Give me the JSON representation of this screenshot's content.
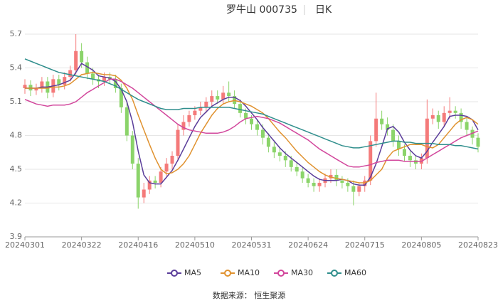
{
  "chart_data": {
    "type": "candlestick",
    "title": "罗牛山 000735",
    "period": "日K",
    "source": "数据来源： 恒生聚源",
    "categories": [
      "20240301",
      null,
      null,
      null,
      null,
      null,
      null,
      null,
      null,
      null,
      "20240322",
      null,
      null,
      null,
      null,
      null,
      null,
      null,
      null,
      null,
      "20240416",
      null,
      null,
      null,
      null,
      null,
      null,
      null,
      null,
      null,
      "20240510",
      null,
      null,
      null,
      null,
      null,
      null,
      null,
      null,
      null,
      "20240531",
      null,
      null,
      null,
      null,
      null,
      null,
      null,
      null,
      null,
      "20240624",
      null,
      null,
      null,
      null,
      null,
      null,
      null,
      null,
      null,
      "20240715",
      null,
      null,
      null,
      null,
      null,
      null,
      null,
      null,
      null,
      "20240805",
      null,
      null,
      null,
      null,
      null,
      null,
      null,
      null,
      null,
      "20240823"
    ],
    "open": [
      5.22,
      5.25,
      5.2,
      5.22,
      5.28,
      5.18,
      5.3,
      5.25,
      5.32,
      5.38,
      5.55,
      5.45,
      5.35,
      5.3,
      5.28,
      5.32,
      5.3,
      5.22,
      5.05,
      4.8,
      4.55,
      4.25,
      4.32,
      4.4,
      4.38,
      4.48,
      4.55,
      4.62,
      4.85,
      4.92,
      4.98,
      5.02,
      5.05,
      5.1,
      5.15,
      5.12,
      5.18,
      5.15,
      5.08,
      5.0,
      4.95,
      4.9,
      4.85,
      4.78,
      4.7,
      4.65,
      4.62,
      4.58,
      4.52,
      4.48,
      4.42,
      4.38,
      4.35,
      4.38,
      4.42,
      4.45,
      4.4,
      4.38,
      4.35,
      4.3,
      4.35,
      4.4,
      4.75,
      4.95,
      4.9,
      4.85,
      4.75,
      4.68,
      4.62,
      4.58,
      4.55,
      4.6,
      4.95,
      4.98,
      4.92,
      5.0,
      5.02,
      5.0,
      4.92,
      4.85,
      4.78
    ],
    "high": [
      5.3,
      5.29,
      5.26,
      5.32,
      5.32,
      5.34,
      5.34,
      5.36,
      5.42,
      5.7,
      5.62,
      5.5,
      5.4,
      5.34,
      5.36,
      5.36,
      5.34,
      5.26,
      5.1,
      4.84,
      4.6,
      4.38,
      4.44,
      4.44,
      4.52,
      4.6,
      4.66,
      4.9,
      4.98,
      5.02,
      5.06,
      5.1,
      5.14,
      5.2,
      5.2,
      5.24,
      5.28,
      5.2,
      5.12,
      5.04,
      4.98,
      4.94,
      4.9,
      4.82,
      4.74,
      4.7,
      4.66,
      4.62,
      4.56,
      4.52,
      4.46,
      4.42,
      4.42,
      4.46,
      4.5,
      4.5,
      4.44,
      4.42,
      4.4,
      4.38,
      4.44,
      4.8,
      5.18,
      5.02,
      4.96,
      4.9,
      4.8,
      4.72,
      4.66,
      4.62,
      4.64,
      5.12,
      5.04,
      5.02,
      5.06,
      5.14,
      5.06,
      5.04,
      4.96,
      4.88,
      4.82
    ],
    "low": [
      5.17,
      5.15,
      5.16,
      5.18,
      5.13,
      5.14,
      5.2,
      5.21,
      5.28,
      5.34,
      5.4,
      5.3,
      5.25,
      5.22,
      5.24,
      5.26,
      5.18,
      5.0,
      4.75,
      4.5,
      4.15,
      4.2,
      4.28,
      4.33,
      4.34,
      4.44,
      4.5,
      4.58,
      4.8,
      4.88,
      4.94,
      4.98,
      5.0,
      5.05,
      5.08,
      5.08,
      5.1,
      5.04,
      4.96,
      4.9,
      4.85,
      4.8,
      4.72,
      4.65,
      4.6,
      4.57,
      4.52,
      4.48,
      4.44,
      4.38,
      4.34,
      4.3,
      4.3,
      4.34,
      4.38,
      4.35,
      4.33,
      4.3,
      4.18,
      4.26,
      4.3,
      4.36,
      4.7,
      4.85,
      4.8,
      4.7,
      4.62,
      4.57,
      4.52,
      4.5,
      4.5,
      4.55,
      4.9,
      4.86,
      4.88,
      4.95,
      4.95,
      4.86,
      4.8,
      4.72,
      4.65
    ],
    "close": [
      5.25,
      5.2,
      5.22,
      5.28,
      5.18,
      5.3,
      5.25,
      5.32,
      5.38,
      5.55,
      5.45,
      5.35,
      5.3,
      5.28,
      5.32,
      5.3,
      5.22,
      5.05,
      4.8,
      4.55,
      4.25,
      4.32,
      4.4,
      4.38,
      4.48,
      4.55,
      4.62,
      4.85,
      4.92,
      4.98,
      5.02,
      5.05,
      5.1,
      5.15,
      5.12,
      5.18,
      5.15,
      5.08,
      5.0,
      4.95,
      4.9,
      4.85,
      4.78,
      4.7,
      4.65,
      4.62,
      4.58,
      4.52,
      4.48,
      4.42,
      4.38,
      4.35,
      4.38,
      4.42,
      4.45,
      4.4,
      4.38,
      4.35,
      4.3,
      4.35,
      4.4,
      4.75,
      4.95,
      4.9,
      4.85,
      4.75,
      4.68,
      4.62,
      4.58,
      4.55,
      4.6,
      4.95,
      4.98,
      4.92,
      5.0,
      5.02,
      5.0,
      4.92,
      4.85,
      4.78,
      4.7
    ],
    "up_color": "#f47a7a",
    "down_color": "#8bd46a",
    "series": [
      {
        "name": "MA5",
        "color": "#5a3d9a",
        "values": [
          5.22,
          5.22,
          5.22,
          5.23,
          5.23,
          5.24,
          5.25,
          5.27,
          5.29,
          5.36,
          5.44,
          5.41,
          5.38,
          5.33,
          5.32,
          5.31,
          5.28,
          5.21,
          5.1,
          4.92,
          4.66,
          4.45,
          4.38,
          4.37,
          4.37,
          4.43,
          4.49,
          4.58,
          4.68,
          4.78,
          4.88,
          4.96,
          5.01,
          5.06,
          5.09,
          5.12,
          5.14,
          5.14,
          5.11,
          5.06,
          5.0,
          4.94,
          4.87,
          4.81,
          4.75,
          4.69,
          4.64,
          4.6,
          4.56,
          4.52,
          4.48,
          4.44,
          4.41,
          4.4,
          4.4,
          4.4,
          4.41,
          4.4,
          4.37,
          4.36,
          4.36,
          4.43,
          4.55,
          4.7,
          4.86,
          4.88,
          4.83,
          4.74,
          4.67,
          4.62,
          4.6,
          4.66,
          4.74,
          4.81,
          4.88,
          4.97,
          4.98,
          4.98,
          4.97,
          4.94,
          4.85
        ]
      },
      {
        "name": "MA10",
        "color": "#e0922f",
        "values": [
          5.22,
          5.22,
          5.22,
          5.22,
          5.22,
          5.23,
          5.23,
          5.24,
          5.26,
          5.3,
          5.34,
          5.35,
          5.36,
          5.35,
          5.34,
          5.34,
          5.33,
          5.29,
          5.22,
          5.12,
          4.98,
          4.85,
          4.72,
          4.6,
          4.5,
          4.46,
          4.47,
          4.5,
          4.55,
          4.62,
          4.72,
          4.82,
          4.9,
          4.98,
          5.04,
          5.08,
          5.1,
          5.11,
          5.1,
          5.08,
          5.06,
          5.03,
          5.0,
          4.95,
          4.89,
          4.83,
          4.78,
          4.72,
          4.66,
          4.61,
          4.56,
          4.52,
          4.48,
          4.45,
          4.43,
          4.42,
          4.41,
          4.4,
          4.39,
          4.38,
          4.38,
          4.4,
          4.45,
          4.5,
          4.6,
          4.66,
          4.68,
          4.7,
          4.72,
          4.72,
          4.72,
          4.7,
          4.69,
          4.72,
          4.78,
          4.84,
          4.9,
          4.94,
          4.96,
          4.94,
          4.9
        ]
      },
      {
        "name": "MA30",
        "color": "#d2479c",
        "values": [
          5.12,
          5.1,
          5.08,
          5.07,
          5.06,
          5.07,
          5.07,
          5.07,
          5.08,
          5.1,
          5.14,
          5.18,
          5.21,
          5.24,
          5.27,
          5.3,
          5.3,
          5.28,
          5.25,
          5.22,
          5.18,
          5.14,
          5.1,
          5.06,
          5.02,
          4.98,
          4.94,
          4.9,
          4.87,
          4.85,
          4.84,
          4.83,
          4.82,
          4.82,
          4.82,
          4.83,
          4.85,
          4.88,
          4.92,
          4.95,
          4.96,
          4.97,
          4.96,
          4.95,
          4.93,
          4.91,
          4.88,
          4.85,
          4.82,
          4.79,
          4.76,
          4.72,
          4.68,
          4.65,
          4.62,
          4.59,
          4.56,
          4.53,
          4.52,
          4.52,
          4.53,
          4.54,
          4.56,
          4.57,
          4.58,
          4.58,
          4.58,
          4.57,
          4.57,
          4.57,
          4.57,
          4.6,
          4.63,
          4.66,
          4.69,
          4.72,
          4.75,
          4.78,
          4.8,
          4.82,
          4.84
        ]
      },
      {
        "name": "MA60",
        "color": "#2f8e8c",
        "values": [
          5.48,
          5.46,
          5.44,
          5.42,
          5.4,
          5.38,
          5.36,
          5.35,
          5.34,
          5.33,
          5.32,
          5.31,
          5.3,
          5.29,
          5.28,
          5.26,
          5.24,
          5.21,
          5.18,
          5.15,
          5.12,
          5.1,
          5.08,
          5.06,
          5.04,
          5.03,
          5.03,
          5.03,
          5.04,
          5.04,
          5.04,
          5.05,
          5.05,
          5.05,
          5.05,
          5.05,
          5.05,
          5.04,
          5.03,
          5.02,
          5.01,
          5.0,
          4.99,
          4.97,
          4.95,
          4.93,
          4.91,
          4.89,
          4.87,
          4.85,
          4.83,
          4.81,
          4.79,
          4.77,
          4.75,
          4.73,
          4.71,
          4.7,
          4.69,
          4.69,
          4.7,
          4.71,
          4.72,
          4.73,
          4.74,
          4.75,
          4.75,
          4.74,
          4.74,
          4.73,
          4.73,
          4.73,
          4.73,
          4.72,
          4.72,
          4.72,
          4.71,
          4.71,
          4.7,
          4.69,
          4.68
        ]
      }
    ],
    "ylim": [
      3.9,
      5.7
    ],
    "yticks": [
      3.9,
      4.2,
      4.5,
      4.8,
      5.1,
      5.4,
      5.7
    ],
    "grid": true
  }
}
